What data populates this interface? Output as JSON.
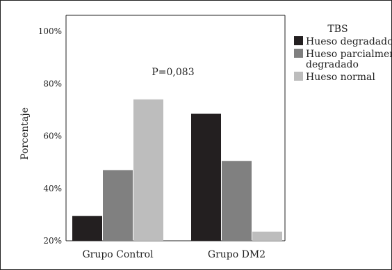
{
  "chart_data": {
    "type": "bar",
    "categories": [
      "Grupo Control",
      "Grupo DM2"
    ],
    "series": [
      {
        "name": "Hueso degradado",
        "values": [
          29.5,
          68.5
        ],
        "color": "#231f20"
      },
      {
        "name": "Hueso parcialmente degradado",
        "values": [
          47,
          50.5
        ],
        "color": "#808080"
      },
      {
        "name": "Hueso normal",
        "values": [
          74,
          23.5
        ],
        "color": "#bdbdbd"
      }
    ],
    "title": "",
    "xlabel": "",
    "ylabel": "Porcentaje",
    "ylim": [
      20,
      100
    ],
    "yticks": [
      20,
      40,
      60,
      80,
      100
    ],
    "ytick_labels": [
      "20%",
      "40%",
      "60%",
      "80%",
      "100%"
    ],
    "annotation": "P=0,083",
    "legend": {
      "title": "TBS",
      "placement": "right",
      "entries": [
        {
          "lines": [
            "Hueso degradado"
          ]
        },
        {
          "lines": [
            "Hueso parcialmente",
            "degradado"
          ]
        },
        {
          "lines": [
            "Hueso normal"
          ]
        }
      ]
    },
    "grid": false
  }
}
